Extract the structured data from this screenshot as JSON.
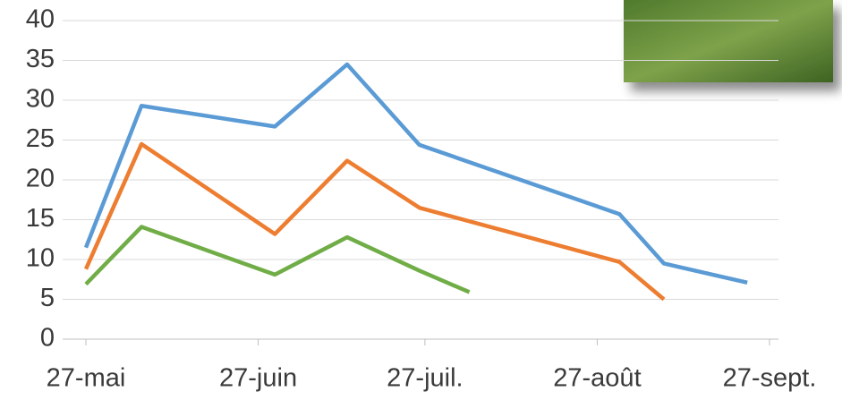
{
  "chart_data": {
    "type": "line",
    "xlim": [
      0,
      123
    ],
    "xticks": [
      {
        "value": 0,
        "label": "27-mai"
      },
      {
        "value": 31,
        "label": "27-juin"
      },
      {
        "value": 61,
        "label": "27-juil."
      },
      {
        "value": 92,
        "label": "27-août"
      },
      {
        "value": 123,
        "label": "27-sept."
      }
    ],
    "ylim": [
      0,
      40
    ],
    "yticks": [
      0,
      5,
      10,
      15,
      20,
      25,
      30,
      35,
      40
    ],
    "grid": true,
    "series": [
      {
        "color": "#5b9bd5",
        "x": [
          0,
          10,
          34,
          47,
          60,
          96,
          104,
          119
        ],
        "values": [
          11.5,
          29.3,
          26.7,
          34.5,
          24.4,
          15.7,
          9.5,
          7.1
        ]
      },
      {
        "color": "#ed7d31",
        "x": [
          0,
          10,
          34,
          47,
          60,
          96,
          104
        ],
        "values": [
          8.8,
          24.5,
          13.2,
          22.4,
          16.5,
          9.7,
          5.0
        ]
      },
      {
        "color": "#70ad47",
        "x": [
          0,
          10,
          34,
          47,
          60,
          69
        ],
        "values": [
          6.9,
          14.1,
          8.1,
          12.8,
          8.6,
          5.9
        ]
      }
    ]
  }
}
